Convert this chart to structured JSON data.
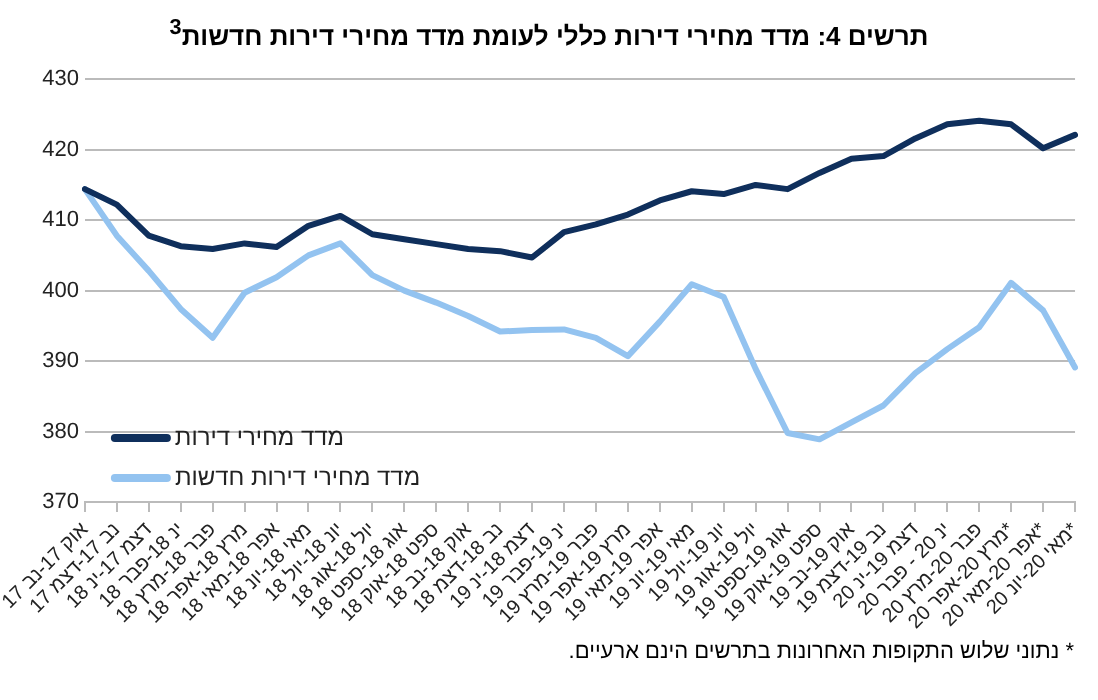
{
  "chart_data": {
    "type": "line",
    "title": "תרשים 4: מדד מחירי דירות כללי לעומת מדד מחירי דירות חדשות$^{3}$",
    "categories": [
      "אוק 17-נב 17",
      "נב 17-דצמ 17",
      "דצמ 17-ינ 18",
      "ינ 18-פבר 18",
      "פבר 18-מרץ 18",
      "מרץ 18-אפר 18",
      "אפר 18-מאי 18",
      "מאי 18-יונ 18",
      "יונ 18-יול 18",
      "יול 18-אוג 18",
      "אוג 18-ספט 18",
      "ספט 18-אוק 18",
      "אוק 18-נב 18",
      "נב 18-דצמ 18",
      "דצמ 18-ינ 19",
      "ינ 19-פבר 19",
      "פבר 19-מרץ 19",
      "מרץ 19-אפר 19",
      "אפר 19-מאי 19",
      "מאי 19-יונ 19",
      "יונ 19-יול 19",
      "יול 19-אוג 19",
      "אוג 19-ספט 19",
      "ספט 19-אוק 19",
      "אוק 19-נב 19",
      "נב 19-דצמ 19",
      "דצמ 19-ינ 20",
      "ינ 20 - פבר 20",
      "פבר 20-מרץ 20",
      "מרץ 20-אפר 20*",
      "אפר 20-מאי 20*",
      "מאי 20-יונ 20*"
    ],
    "series": [
      {
        "name": "מדד מחירי דירות",
        "color": "#0f2f5c",
        "values": [
          414.4,
          412.2,
          407.8,
          406.3,
          405.9,
          406.7,
          406.2,
          409.2,
          410.6,
          408,
          407.3,
          406.6,
          405.9,
          405.6,
          404.7,
          408.3,
          409.4,
          410.8,
          412.8,
          414.1,
          413.7,
          415,
          414.4,
          416.7,
          418.7,
          419.1,
          421.6,
          423.6,
          424.1,
          423.6,
          420.2,
          422.1
        ]
      },
      {
        "name": "מדד מחירי דירות חדשות",
        "color": "#93c3f0",
        "values": [
          414.4,
          407.8,
          402.8,
          397.4,
          393.3,
          399.7,
          401.9,
          405,
          406.7,
          402.2,
          400,
          398.3,
          396.4,
          394.2,
          394.4,
          394.5,
          393.3,
          390.7,
          395.6,
          400.9,
          399.1,
          388.9,
          379.8,
          378.9,
          381.3,
          383.7,
          388.3,
          391.7,
          394.8,
          401.1,
          397.2,
          389.1
        ]
      }
    ],
    "ylim": [
      370,
      430
    ],
    "yticks": [
      370,
      380,
      390,
      400,
      410,
      420,
      430
    ],
    "grid": "y",
    "legend": "bottom left",
    "marker": "none",
    "line_style": "solid",
    "annotations": [
      "* נתוני שלוש התקופות האחרונות בתרשים הינם ארעיים."
    ]
  }
}
